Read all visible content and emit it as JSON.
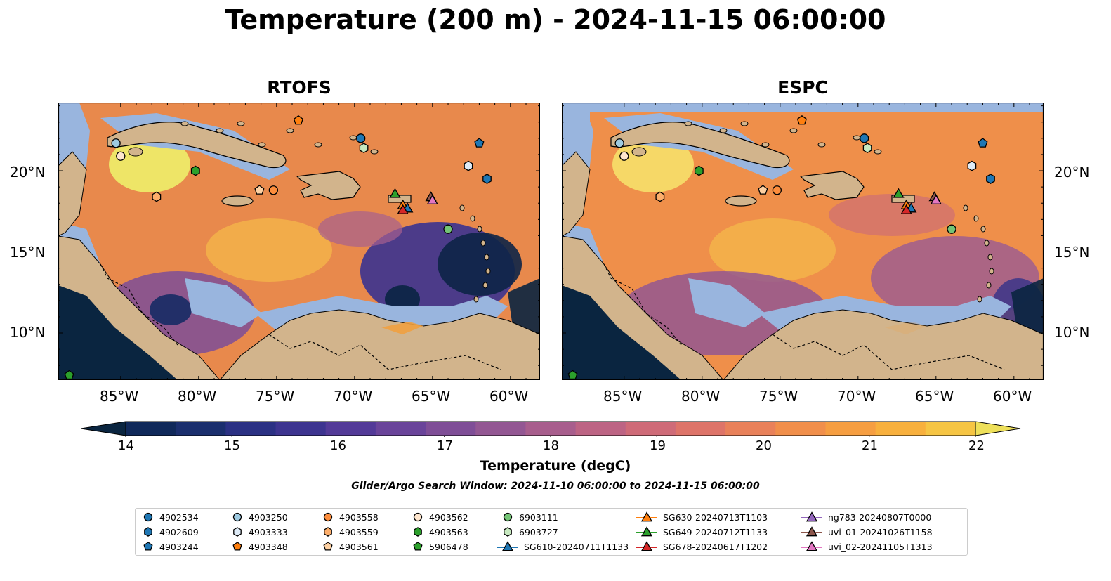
{
  "title": "Temperature (200 m) - 2024-11-15 06:00:00",
  "panels": [
    {
      "title": "RTOFS"
    },
    {
      "title": "ESPC"
    }
  ],
  "lat_labels": [
    "20°N",
    "15°N",
    "10°N"
  ],
  "lon_labels": [
    "85°W",
    "80°W",
    "75°W",
    "70°W",
    "65°W",
    "60°W"
  ],
  "colorbar": {
    "label": "Temperature (degC)",
    "ticks": [
      "14",
      "15",
      "16",
      "17",
      "18",
      "19",
      "20",
      "21",
      "22"
    ],
    "min": 14,
    "max": 22,
    "colors": [
      "#0a2540",
      "#10295a",
      "#1b2f6e",
      "#2b3184",
      "#3d3490",
      "#533a98",
      "#6a449a",
      "#7f4e97",
      "#935793",
      "#a85e8d",
      "#bd6484",
      "#cf6b78",
      "#de7469",
      "#e9815a",
      "#f18f4b",
      "#f69e41",
      "#f8b03d",
      "#f6c544",
      "#eee05a"
    ]
  },
  "search_window": "Glider/Argo Search Window: 2024-11-10 06:00:00 to 2024-11-15 06:00:00",
  "legend": [
    {
      "label": "4902534",
      "marker": "circle",
      "color": "#1f77b4"
    },
    {
      "label": "4902609",
      "marker": "hexagon",
      "color": "#1f77b4"
    },
    {
      "label": "4903244",
      "marker": "pentagon",
      "color": "#1f77b4"
    },
    {
      "label": "4903250",
      "marker": "circle",
      "color": "#9ecae1"
    },
    {
      "label": "4903333",
      "marker": "hexagon",
      "color": "#deebf7"
    },
    {
      "label": "4903348",
      "marker": "pentagon",
      "color": "#ff7f0e"
    },
    {
      "label": "4903558",
      "marker": "circle",
      "color": "#fd8d3c"
    },
    {
      "label": "4903559",
      "marker": "hexagon",
      "color": "#fdae6b"
    },
    {
      "label": "4903561",
      "marker": "pentagon",
      "color": "#fdd0a2"
    },
    {
      "label": "4903562",
      "marker": "circle",
      "color": "#fee6ce"
    },
    {
      "label": "4903563",
      "marker": "hexagon",
      "color": "#2ca02c"
    },
    {
      "label": "5906478",
      "marker": "pentagon",
      "color": "#2ca02c"
    },
    {
      "label": "6903111",
      "marker": "circle",
      "color": "#74c476"
    },
    {
      "label": "6903727",
      "marker": "hexagon",
      "color": "#c7e9c0"
    },
    {
      "label": "SG610-20240711T1133",
      "marker": "triangle-line",
      "color": "#1f77b4"
    },
    {
      "label": "SG630-20240713T1103",
      "marker": "triangle-line",
      "color": "#ff7f0e"
    },
    {
      "label": "SG649-20240712T1133",
      "marker": "triangle-line",
      "color": "#2ca02c"
    },
    {
      "label": "SG678-20240617T1202",
      "marker": "triangle-line",
      "color": "#d62728"
    },
    {
      "label": "ng783-20240807T0000",
      "marker": "triangle-line",
      "color": "#9467bd"
    },
    {
      "label": "uvi_01-20241026T1158",
      "marker": "triangle-line",
      "color": "#8c564b"
    },
    {
      "label": "uvi_02-20241105T1313",
      "marker": "triangle-line",
      "color": "#e377c2"
    }
  ],
  "markers": [
    {
      "id": "4902534",
      "lon": -69.6,
      "lat": 22.0
    },
    {
      "id": "4903244",
      "lon": -62.0,
      "lat": 21.7
    },
    {
      "id": "4903250",
      "lon": -85.3,
      "lat": 21.7
    },
    {
      "id": "6903727",
      "lon": -69.4,
      "lat": 21.4
    },
    {
      "id": "4903562",
      "lon": -85.0,
      "lat": 20.9
    },
    {
      "id": "4903333",
      "lon": -62.7,
      "lat": 20.3
    },
    {
      "id": "4903563",
      "lon": -80.2,
      "lat": 20.0
    },
    {
      "id": "4902609",
      "lon": -61.5,
      "lat": 19.5
    },
    {
      "id": "4903558",
      "lon": -75.2,
      "lat": 18.8
    },
    {
      "id": "4903561",
      "lon": -76.1,
      "lat": 18.8
    },
    {
      "id": "4903559",
      "lon": -82.7,
      "lat": 18.4
    },
    {
      "id": "6903111",
      "lon": -64.0,
      "lat": 16.4
    },
    {
      "id": "4903348",
      "lon": -73.6,
      "lat": 23.1
    },
    {
      "id": "5906478",
      "lon": -88.3,
      "lat": 7.4
    },
    {
      "id": "SG649-20240712T1133",
      "lon": -67.4,
      "lat": 18.6
    },
    {
      "id": "SG630-20240713T1103",
      "lon": -66.9,
      "lat": 17.9
    },
    {
      "id": "SG610-20240711T1133",
      "lon": -66.6,
      "lat": 17.7
    },
    {
      "id": "SG678-20240617T1202",
      "lon": -66.9,
      "lat": 17.6
    },
    {
      "id": "uvi_01-20241026T1158",
      "lon": -65.1,
      "lat": 18.4
    },
    {
      "id": "uvi_02-20241105T1313",
      "lon": -65.0,
      "lat": 18.2
    }
  ]
}
